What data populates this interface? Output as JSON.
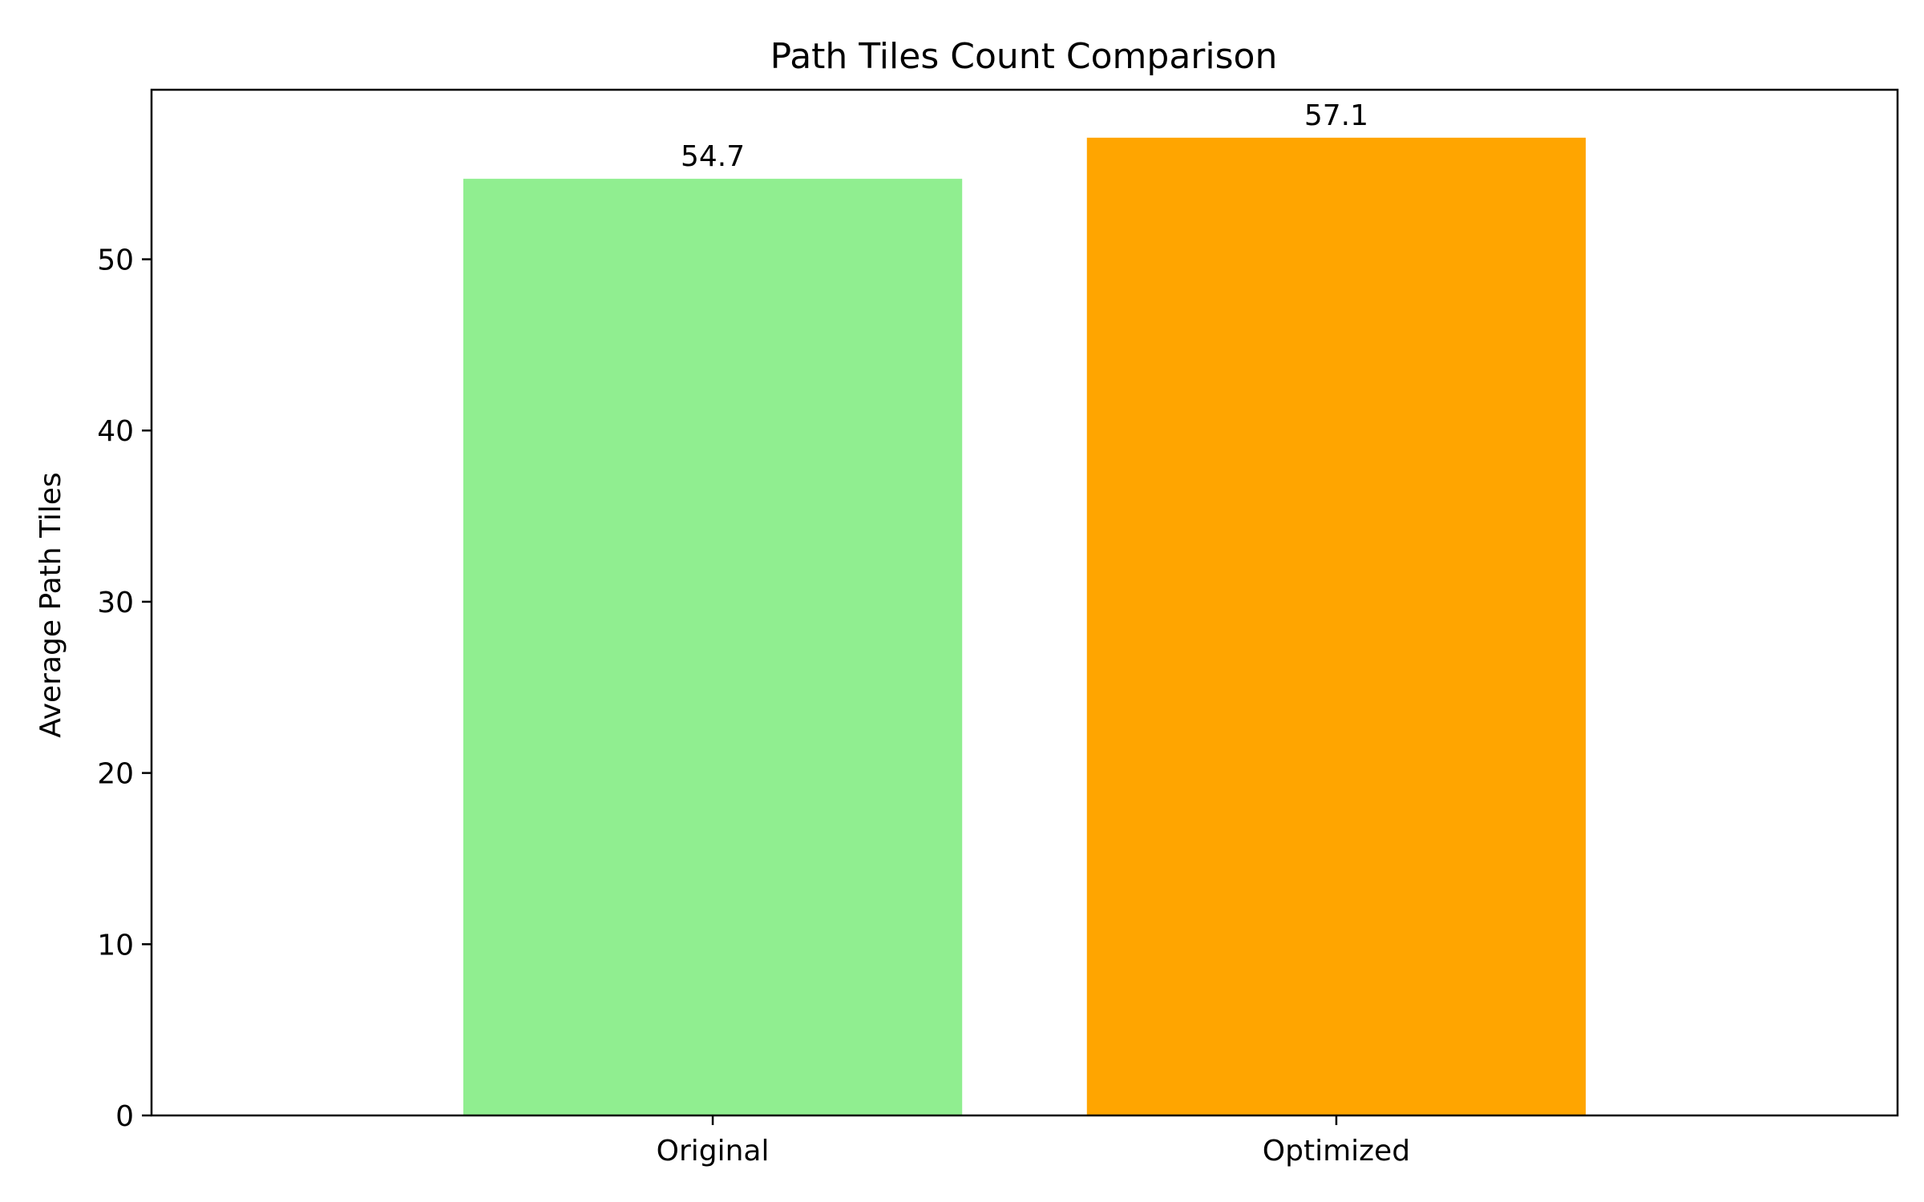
{
  "chart_data": {
    "type": "bar",
    "title": "Path Tiles Count Comparison",
    "xlabel": "",
    "ylabel": "Average Path Tiles",
    "categories": [
      "Original",
      "Optimized"
    ],
    "values": [
      54.7,
      57.1
    ],
    "value_labels": [
      "54.7",
      "57.1"
    ],
    "colors": [
      "#90ee90",
      "#ffa500"
    ],
    "ylim": [
      0,
      59.9
    ],
    "yticks": [
      0,
      10,
      20,
      30,
      40,
      50
    ],
    "grid": false,
    "legend": "none"
  }
}
